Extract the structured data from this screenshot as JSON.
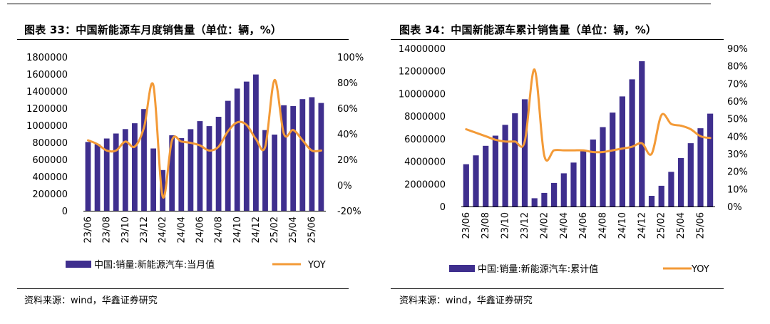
{
  "colors": {
    "bar": "#3f2f8e",
    "line": "#f39a37",
    "axis": "#000000",
    "text": "#000000"
  },
  "chart_data": [
    {
      "type": "bar+line",
      "title": "图表 33：中国新能源车月度销售量（单位：辆，%）",
      "source": "资料来源：wind，华鑫证券研究",
      "x": [
        "23/06",
        "23/07",
        "23/08",
        "23/09",
        "23/10",
        "23/11",
        "23/12",
        "24/01",
        "24/02",
        "24/03",
        "24/04",
        "24/05",
        "24/06",
        "24/07",
        "24/08",
        "24/09",
        "24/10",
        "24/11",
        "24/12",
        "25/01",
        "25/02",
        "25/03",
        "25/04",
        "25/05",
        "25/06",
        "25/07"
      ],
      "x_tick_labels": [
        "23/06",
        "23/08",
        "23/10",
        "23/12",
        "24/02",
        "24/04",
        "24/06",
        "24/08",
        "24/10",
        "24/12",
        "25/02",
        "25/04",
        "25/06"
      ],
      "series": [
        {
          "name": "中国:销量:新能源汽车:当月值",
          "kind": "bar",
          "axis": "left",
          "values": [
            805000,
            780000,
            846000,
            904000,
            956000,
            1024000,
            1190000,
            729000,
            477000,
            883000,
            850000,
            955000,
            1049000,
            991000,
            1100000,
            1287000,
            1430000,
            1512000,
            1595000,
            944000,
            892000,
            1235000,
            1226000,
            1307000,
            1329000,
            1262000
          ]
        },
        {
          "name": "YOY",
          "kind": "line",
          "axis": "right",
          "values": [
            35,
            32,
            27,
            27,
            34,
            30,
            45,
            78,
            -9,
            35,
            34,
            33,
            31,
            27,
            30,
            42,
            49,
            47,
            36,
            30,
            82,
            40,
            43,
            35,
            27,
            27
          ]
        }
      ],
      "y_left": {
        "ticks": [
          "0",
          "200000",
          "400000",
          "600000",
          "800000",
          "1000000",
          "1200000",
          "1400000",
          "1600000",
          "1800000"
        ],
        "lim": [
          0,
          1800000
        ]
      },
      "y_right": {
        "ticks": [
          "-20%",
          "0%",
          "20%",
          "40%",
          "60%",
          "80%",
          "100%"
        ],
        "lim": [
          -20,
          100
        ]
      },
      "legend": [
        "中国:销量:新能源汽车:当月值",
        "YOY"
      ]
    },
    {
      "type": "bar+line",
      "title": "图表 34：中国新能源车累计销售量（单位：辆，%）",
      "source": "资料来源：wind，华鑫证券研究",
      "x": [
        "23/06",
        "23/07",
        "23/08",
        "23/09",
        "23/10",
        "23/11",
        "23/12",
        "24/01",
        "24/02",
        "24/03",
        "24/04",
        "24/05",
        "24/06",
        "24/07",
        "24/08",
        "24/09",
        "24/10",
        "24/11",
        "24/12",
        "25/01",
        "25/02",
        "25/03",
        "25/04",
        "25/05",
        "25/06",
        "25/07"
      ],
      "x_tick_labels": [
        "23/06",
        "23/08",
        "23/10",
        "23/12",
        "24/02",
        "24/04",
        "24/06",
        "24/08",
        "24/10",
        "24/12",
        "25/02",
        "25/04",
        "25/06"
      ],
      "series": [
        {
          "name": "中国:销量:新能源汽车:累计值",
          "kind": "bar",
          "axis": "left",
          "values": [
            3747000,
            4527000,
            5373000,
            6277000,
            7233000,
            8257000,
            9495000,
            729000,
            1206000,
            2089000,
            2939000,
            3894000,
            4943000,
            5934000,
            7034000,
            8321000,
            9751000,
            11263000,
            12866000,
            944000,
            1836000,
            3071000,
            4297000,
            5604000,
            6933000,
            8223000
          ]
        },
        {
          "name": "YOY",
          "kind": "line",
          "axis": "right",
          "values": [
            44,
            42,
            40,
            38,
            37,
            37,
            37,
            78,
            29,
            32,
            32,
            32,
            32,
            31,
            31,
            32,
            33,
            34,
            36,
            30,
            52,
            47,
            46,
            44,
            40,
            39
          ]
        }
      ],
      "y_left": {
        "ticks": [
          "0",
          "2000000",
          "4000000",
          "6000000",
          "8000000",
          "10000000",
          "12000000",
          "14000000"
        ],
        "lim": [
          0,
          14000000
        ]
      },
      "y_right": {
        "ticks": [
          "0%",
          "10%",
          "20%",
          "30%",
          "40%",
          "50%",
          "60%",
          "70%",
          "80%",
          "90%"
        ],
        "lim": [
          0,
          90
        ]
      },
      "legend": [
        "中国:销量:新能源汽车:累计值",
        "YOY"
      ]
    }
  ]
}
